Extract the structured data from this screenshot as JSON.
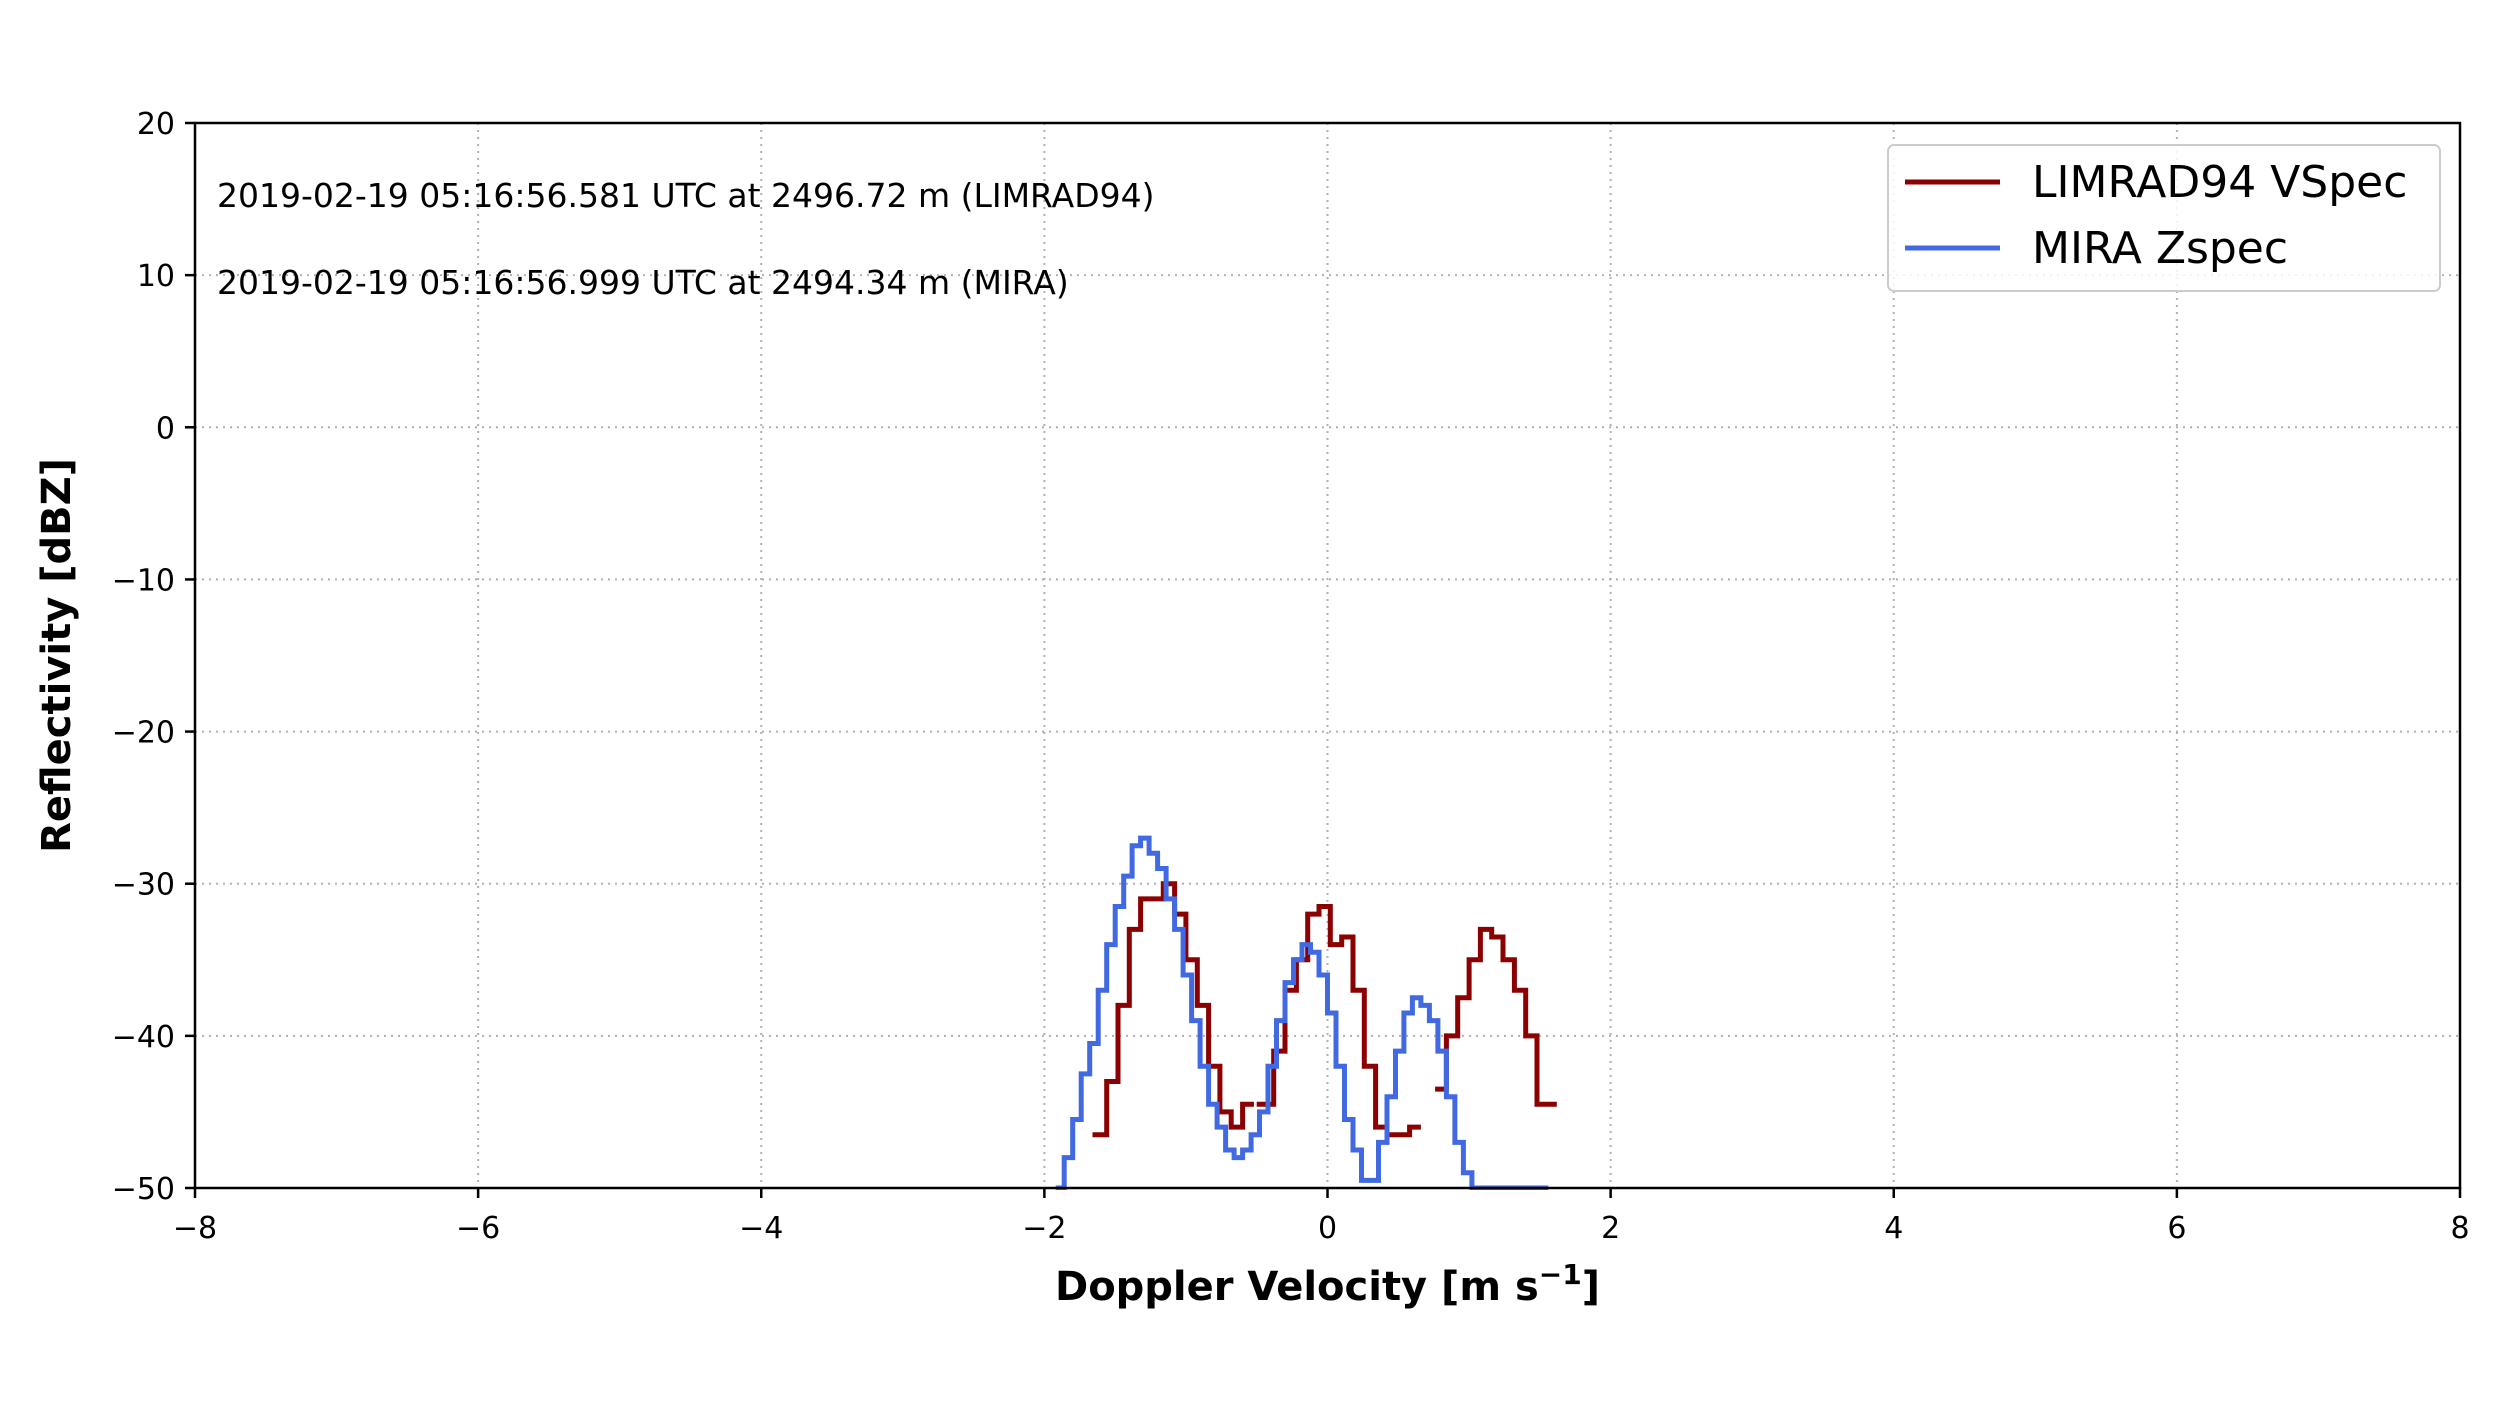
{
  "chart_data": {
    "type": "line",
    "step": true,
    "xlabel": "Doppler Velocity [m s",
    "xlabel_sup": "−1",
    "xlabel_end": "]",
    "ylabel": "Reflectivity [dBZ]",
    "xlim": [
      -8,
      8
    ],
    "ylim": [
      -50,
      20
    ],
    "xticks": [
      -8,
      -6,
      -4,
      -2,
      0,
      2,
      4,
      6,
      8
    ],
    "xtick_labels": [
      "−8",
      "−6",
      "−4",
      "−2",
      "0",
      "2",
      "4",
      "6",
      "8"
    ],
    "yticks": [
      -50,
      -40,
      -30,
      -20,
      -10,
      0,
      10,
      20
    ],
    "ytick_labels": [
      "−50",
      "−40",
      "−30",
      "−20",
      "−10",
      "0",
      "10",
      "20"
    ],
    "grid": true,
    "legend_position": "top-right",
    "annotations": [
      "2019-02-19 05:16:56.581 UTC  at 2496.72 m (LIMRAD94)",
      "2019-02-19 05:16:56.999 UTC  at 2494.34 m (MIRA)"
    ],
    "series": [
      {
        "name": "LIMRAD94 VSpec",
        "color": "#8b0000",
        "x": [
          -1.66,
          -1.56,
          -1.48,
          -1.4,
          -1.32,
          -1.24,
          -1.16,
          -1.08,
          -1.0,
          -0.92,
          -0.84,
          -0.76,
          -0.68,
          -0.6,
          null,
          -0.5,
          -0.38,
          -0.3,
          -0.22,
          -0.14,
          -0.06,
          0.02,
          0.1,
          0.18,
          0.26,
          0.34,
          0.42,
          0.5,
          0.58,
          null,
          0.76,
          0.84,
          0.92,
          1.0,
          1.08,
          1.16,
          1.24,
          1.32,
          1.4,
          1.48,
          1.55
        ],
        "y": [
          -46.5,
          -43.0,
          -38.0,
          -33.0,
          -31.0,
          -31.0,
          -30.0,
          -32.0,
          -35.0,
          -38.0,
          -42.0,
          -45.0,
          -46.0,
          -44.5,
          null,
          -44.5,
          -41.0,
          -37.0,
          -35.0,
          -32.0,
          -31.5,
          -34.0,
          -33.5,
          -37.0,
          -42.0,
          -46.0,
          -46.5,
          -46.5,
          -46.0,
          null,
          -43.5,
          -40.0,
          -37.5,
          -35.0,
          -33.0,
          -33.5,
          -35.0,
          -37.0,
          -40.0,
          -44.5,
          -44.5
        ]
      },
      {
        "name": "MIRA Zspec",
        "color": "#4169e1",
        "x": [
          -1.92,
          -1.86,
          -1.8,
          -1.74,
          -1.68,
          -1.62,
          -1.56,
          -1.5,
          -1.44,
          -1.38,
          -1.32,
          -1.26,
          -1.2,
          -1.14,
          -1.08,
          -1.02,
          -0.96,
          -0.9,
          -0.84,
          -0.78,
          -0.72,
          -0.66,
          -0.6,
          -0.54,
          -0.48,
          -0.42,
          -0.36,
          -0.3,
          -0.24,
          -0.18,
          -0.12,
          -0.06,
          0.0,
          0.06,
          0.12,
          0.18,
          0.24,
          0.3,
          0.36,
          0.42,
          0.48,
          0.54,
          0.6,
          0.66,
          0.72,
          0.78,
          0.84,
          0.9,
          0.96,
          1.02,
          1.08,
          1.14,
          1.2,
          1.26,
          1.32,
          1.38,
          1.44,
          1.5
        ],
        "y": [
          -50.0,
          -48.0,
          -45.5,
          -42.5,
          -40.5,
          -37.0,
          -34.0,
          -31.5,
          -29.5,
          -27.5,
          -27.0,
          -28.0,
          -29.0,
          -31.0,
          -33.0,
          -36.0,
          -39.0,
          -42.0,
          -44.5,
          -46.0,
          -47.5,
          -48.0,
          -47.5,
          -46.5,
          -45.0,
          -42.0,
          -39.0,
          -36.5,
          -35.0,
          -34.0,
          -34.5,
          -36.0,
          -38.5,
          -42.0,
          -45.5,
          -47.5,
          -49.5,
          -49.5,
          -47.0,
          -44.0,
          -41.0,
          -38.5,
          -37.5,
          -38.0,
          -39.0,
          -41.0,
          -44.0,
          -47.0,
          -49.0,
          -50.0,
          -50.0,
          -50.0,
          -50.0,
          -50.0,
          -50.0,
          -50.0,
          -50.0,
          -50.0
        ]
      }
    ]
  }
}
